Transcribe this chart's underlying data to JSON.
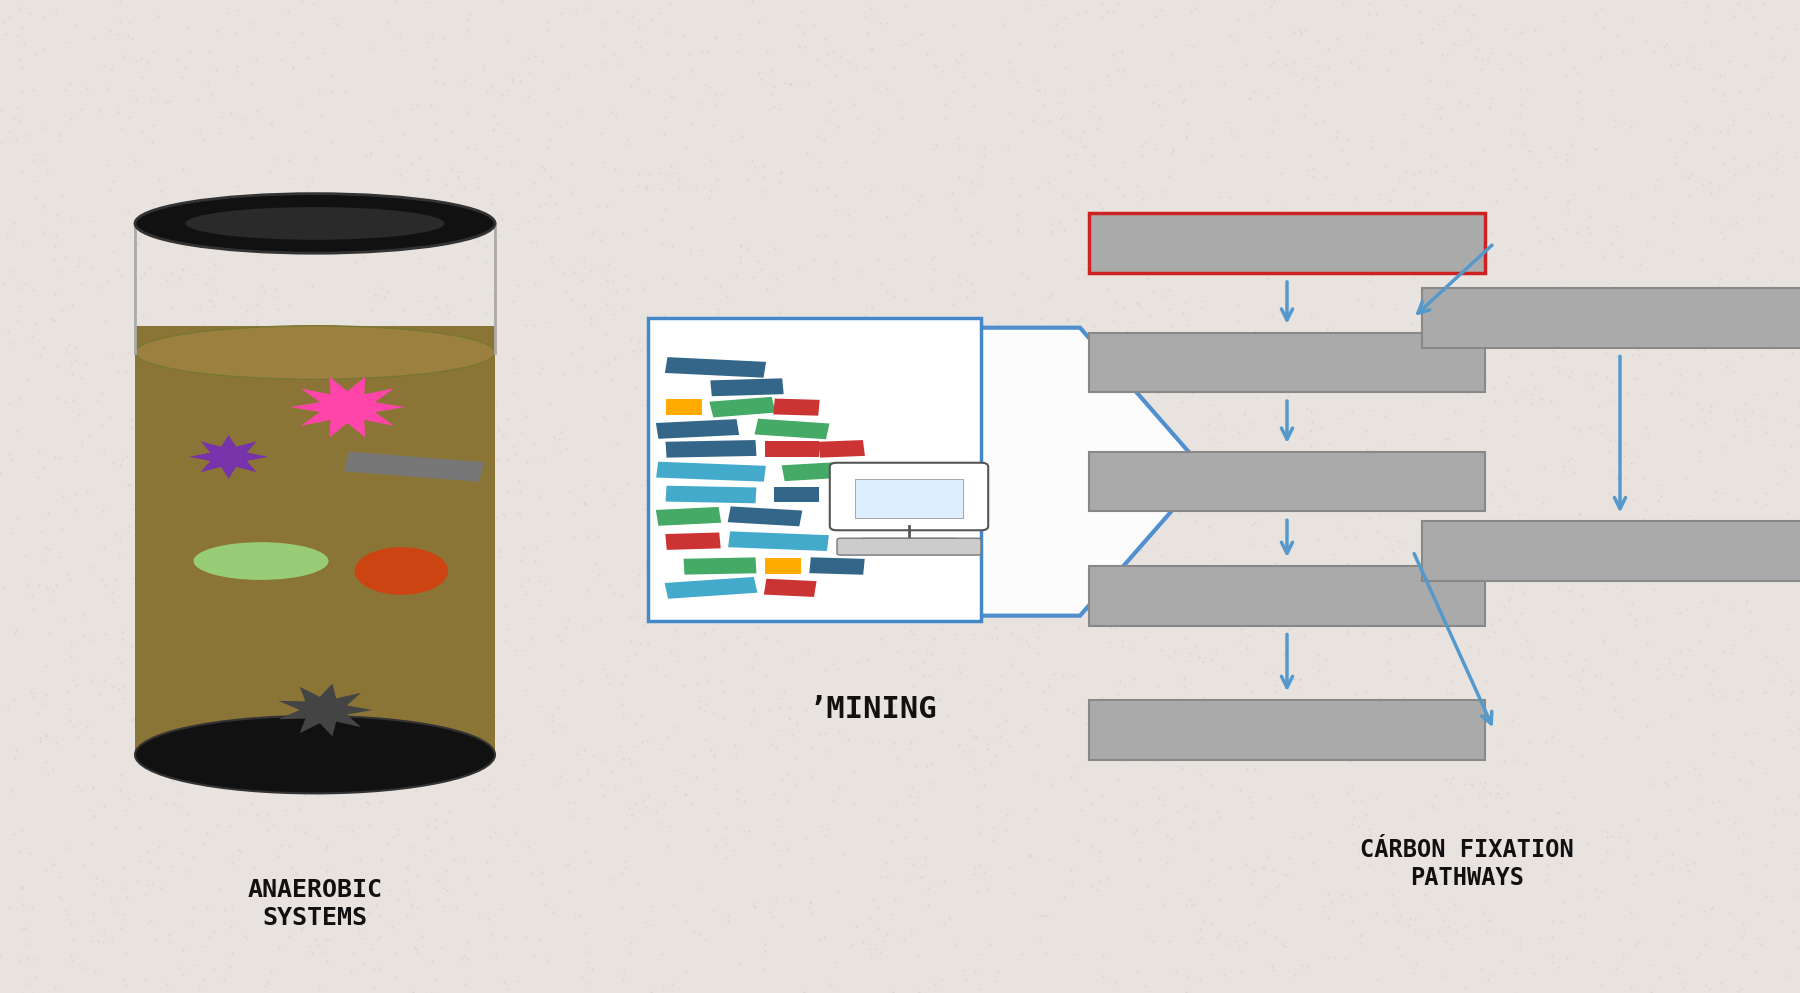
{
  "bg_color": "#e8e3df",
  "label_anaerobic": "ANAEROBIC\nSYSTEMS",
  "label_mining": "’MINING",
  "label_carbon": "CÁRBON FIXATION\nPATHWAYS",
  "box_color": "#aaaaaa",
  "box_red_color": "#cc2222",
  "arrow_color": "#5599cc",
  "text_color": "#111111"
}
